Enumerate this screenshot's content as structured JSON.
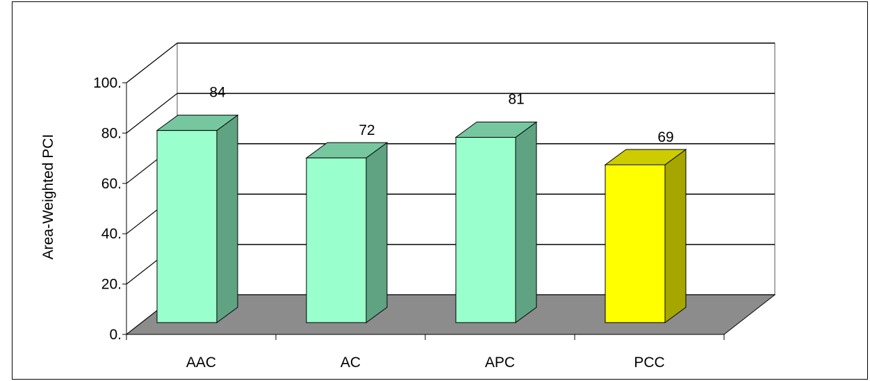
{
  "chart_data": {
    "type": "bar",
    "title": "",
    "xlabel": "",
    "ylabel": "Area-Weighted PCI",
    "ylim": [
      0,
      100
    ],
    "yticks": [
      0,
      20,
      40,
      60,
      80,
      100
    ],
    "ytick_labels": [
      "0.",
      "20.",
      "40.",
      "60.",
      "80.",
      "100."
    ],
    "categories": [
      "AAC",
      "AC",
      "APC",
      "PCC"
    ],
    "values": [
      84,
      72,
      81,
      69
    ],
    "data_labels": [
      "84",
      "72",
      "81",
      "69"
    ],
    "grid": true,
    "style": "3d-column",
    "colors": {
      "face": [
        "#99ffcc",
        "#99ffcc",
        "#99ffcc",
        "#ffff00"
      ],
      "side": [
        "#5fa383",
        "#5fa383",
        "#5fa383",
        "#a6a600"
      ],
      "top": [
        "#76c7a0",
        "#76c7a0",
        "#76c7a0",
        "#cccc00"
      ],
      "floor": "#8c8c8c"
    }
  }
}
